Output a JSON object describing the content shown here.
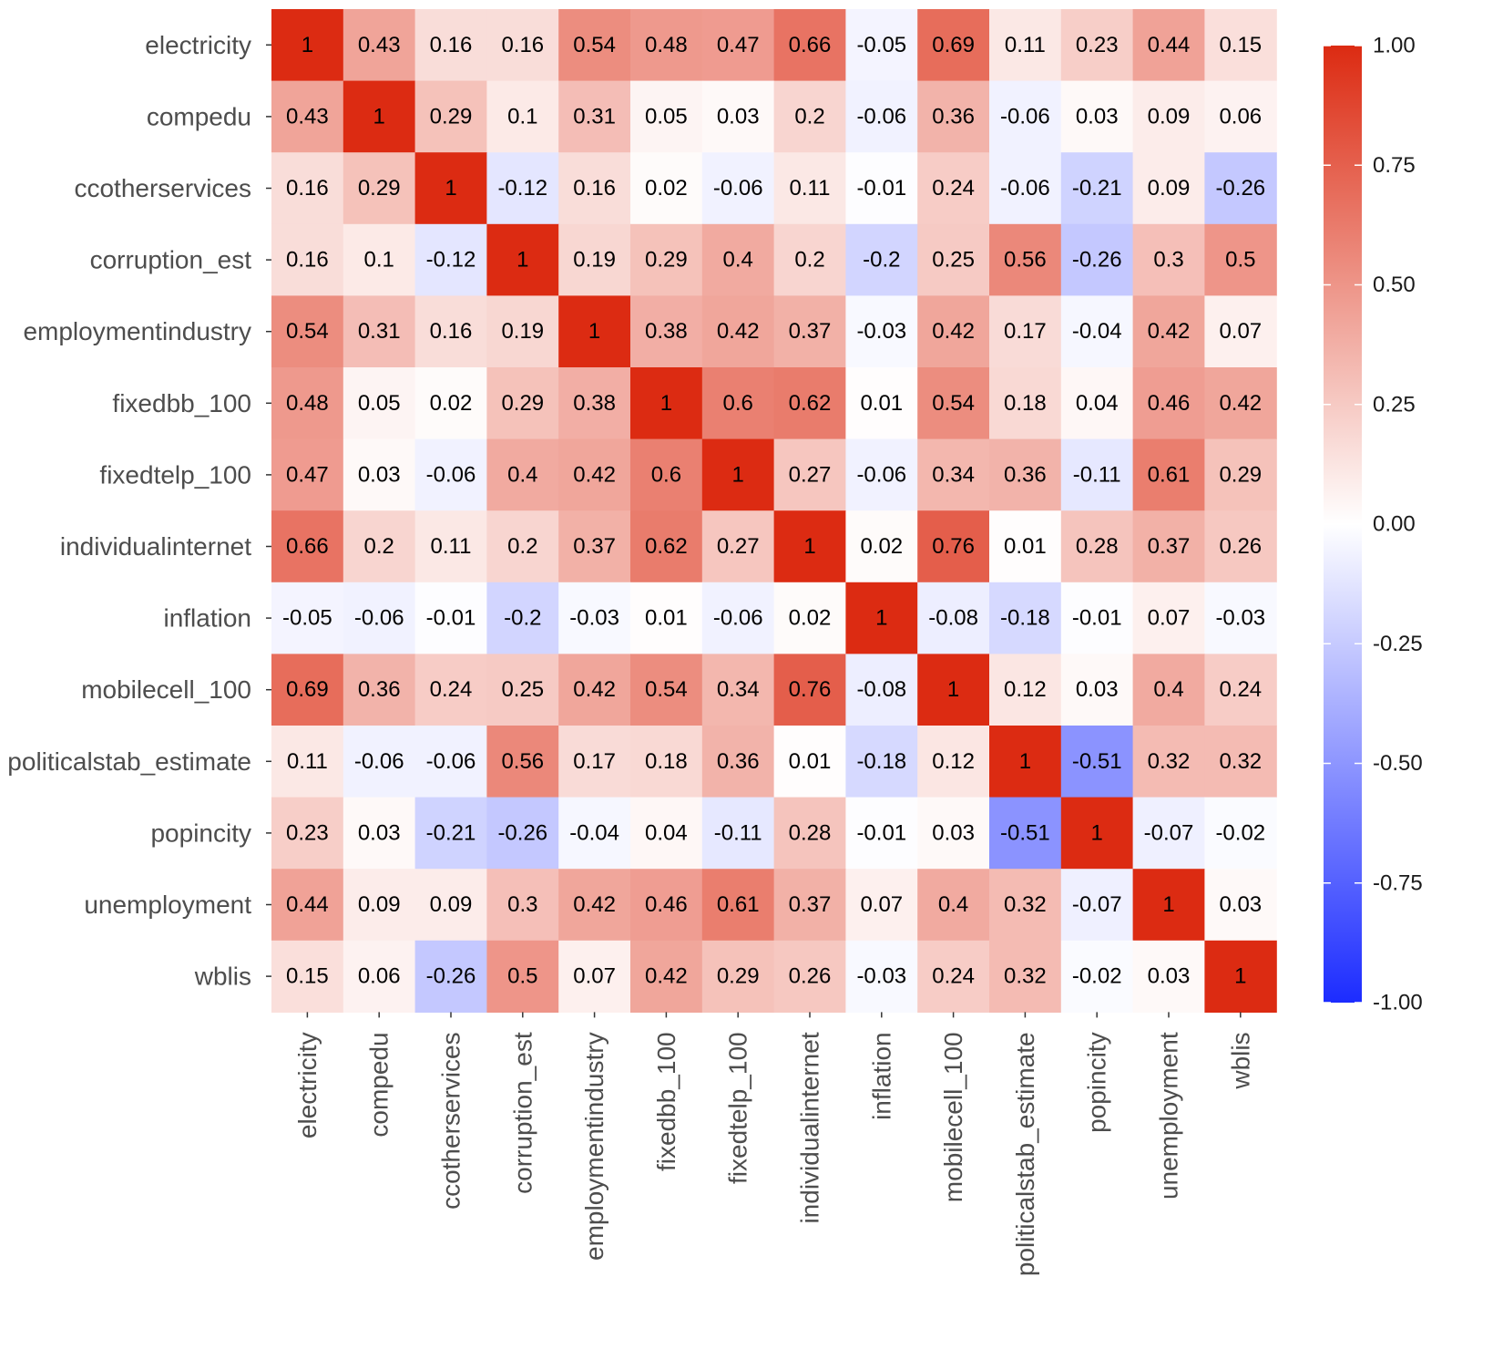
{
  "chart_data": {
    "type": "heatmap",
    "title": "",
    "xlabel": "",
    "ylabel": "",
    "variables": [
      "electricity",
      "compedu",
      "ccotherservices",
      "corruption_est",
      "employmentindustry",
      "fixedbb_100",
      "fixedtelp_100",
      "individualinternet",
      "inflation",
      "mobilecell_100",
      "politicalstab_estimate",
      "popincity",
      "unemployment",
      "wblis"
    ],
    "values": [
      [
        1,
        0.43,
        0.16,
        0.16,
        0.54,
        0.48,
        0.47,
        0.66,
        -0.05,
        0.69,
        0.11,
        0.23,
        0.44,
        0.15
      ],
      [
        0.43,
        1,
        0.29,
        0.1,
        0.31,
        0.05,
        0.03,
        0.2,
        -0.06,
        0.36,
        -0.06,
        0.03,
        0.09,
        0.06
      ],
      [
        0.16,
        0.29,
        1,
        -0.12,
        0.16,
        0.02,
        -0.06,
        0.11,
        -0.01,
        0.24,
        -0.06,
        -0.21,
        0.09,
        -0.26
      ],
      [
        0.16,
        0.1,
        -0.12,
        1,
        0.19,
        0.29,
        0.4,
        0.2,
        -0.2,
        0.25,
        0.56,
        -0.26,
        0.3,
        0.5
      ],
      [
        0.54,
        0.31,
        0.16,
        0.19,
        1,
        0.38,
        0.42,
        0.37,
        -0.03,
        0.42,
        0.17,
        -0.04,
        0.42,
        0.07
      ],
      [
        0.48,
        0.05,
        0.02,
        0.29,
        0.38,
        1,
        0.6,
        0.62,
        0.01,
        0.54,
        0.18,
        0.04,
        0.46,
        0.42
      ],
      [
        0.47,
        0.03,
        -0.06,
        0.4,
        0.42,
        0.6,
        1,
        0.27,
        -0.06,
        0.34,
        0.36,
        -0.11,
        0.61,
        0.29
      ],
      [
        0.66,
        0.2,
        0.11,
        0.2,
        0.37,
        0.62,
        0.27,
        1,
        0.02,
        0.76,
        0.01,
        0.28,
        0.37,
        0.26
      ],
      [
        -0.05,
        -0.06,
        -0.01,
        -0.2,
        -0.03,
        0.01,
        -0.06,
        0.02,
        1,
        -0.08,
        -0.18,
        -0.01,
        0.07,
        -0.03
      ],
      [
        0.69,
        0.36,
        0.24,
        0.25,
        0.42,
        0.54,
        0.34,
        0.76,
        -0.08,
        1,
        0.12,
        0.03,
        0.4,
        0.24
      ],
      [
        0.11,
        -0.06,
        -0.06,
        0.56,
        0.17,
        0.18,
        0.36,
        0.01,
        -0.18,
        0.12,
        1,
        -0.51,
        0.32,
        0.32
      ],
      [
        0.23,
        0.03,
        -0.21,
        -0.26,
        -0.04,
        0.04,
        -0.11,
        0.28,
        -0.01,
        0.03,
        -0.51,
        1,
        -0.07,
        -0.02
      ],
      [
        0.44,
        0.09,
        0.09,
        0.3,
        0.42,
        0.46,
        0.61,
        0.37,
        0.07,
        0.4,
        0.32,
        -0.07,
        1,
        0.03
      ],
      [
        0.15,
        0.06,
        -0.26,
        0.5,
        0.07,
        0.42,
        0.29,
        0.26,
        -0.03,
        0.24,
        0.32,
        -0.02,
        0.03,
        1
      ]
    ],
    "color_scale": {
      "min": -1,
      "mid": 0,
      "max": 1,
      "low_color": "#1c2cff",
      "mid_color": "#ffffff",
      "high_color": "#dc2b12"
    },
    "legend": {
      "position": "right",
      "ticks": [
        "1.00",
        "0.75",
        "0.50",
        "0.25",
        "0.00",
        "-0.25",
        "-0.50",
        "-0.75",
        "-1.00"
      ],
      "tick_values": [
        1,
        0.75,
        0.5,
        0.25,
        0,
        -0.25,
        -0.5,
        -0.75,
        -1
      ]
    },
    "grid": true
  }
}
